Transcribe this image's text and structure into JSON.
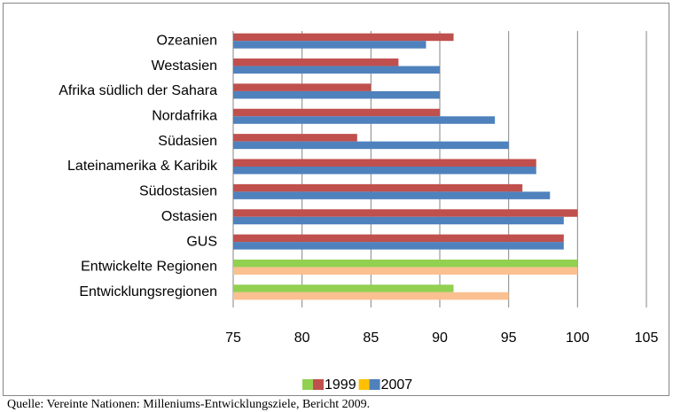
{
  "chart_data": {
    "type": "hbar",
    "categories": [
      "Ozeanien",
      "Westasien",
      "Afrika südlich der Sahara",
      "Nordafrika",
      "Südasien",
      "Lateinamerika & Karibik",
      "Südostasien",
      "Ostasien",
      "GUS",
      "Entwickelte Regionen",
      "Entwicklungsregionen"
    ],
    "series": [
      {
        "name": "1999",
        "legend_colors": [
          "#92d050",
          "#c0504d"
        ],
        "colors": [
          "#c0504d",
          "#c0504d",
          "#c0504d",
          "#c0504d",
          "#c0504d",
          "#c0504d",
          "#c0504d",
          "#c0504d",
          "#c0504d",
          "#92d050",
          "#92d050"
        ],
        "values": [
          91,
          87,
          85,
          90,
          84,
          97,
          96,
          100,
          99,
          100,
          91
        ]
      },
      {
        "name": "2007",
        "legend_colors": [
          "#ffc000",
          "#4f81bd"
        ],
        "colors": [
          "#4f81bd",
          "#4f81bd",
          "#4f81bd",
          "#4f81bd",
          "#4f81bd",
          "#4f81bd",
          "#4f81bd",
          "#4f81bd",
          "#4f81bd",
          "#fac090",
          "#fac090"
        ],
        "values": [
          89,
          90,
          90,
          94,
          95,
          97,
          98,
          99,
          99,
          100,
          95
        ]
      }
    ],
    "xlim": [
      75,
      105
    ],
    "xticks": [
      75,
      80,
      85,
      90,
      95,
      100,
      105
    ],
    "grid": true,
    "source": "Quelle: Vereinte Nationen: Milleniums-Entwicklungsziele, Bericht 2009."
  }
}
